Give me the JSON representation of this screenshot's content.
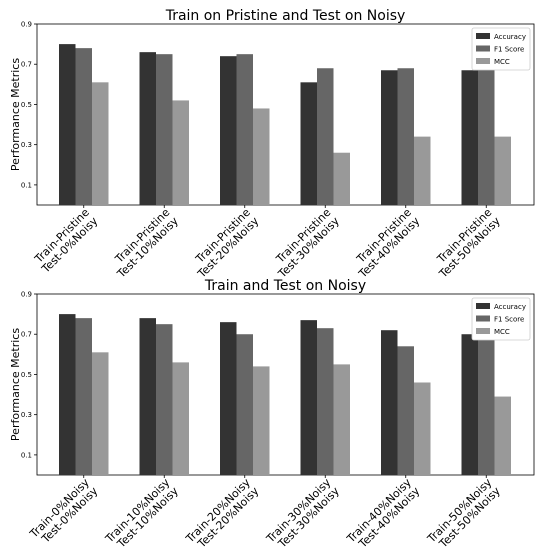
{
  "chart_data": [
    {
      "type": "bar",
      "title": "Train on Pristine and Test on Noisy",
      "xlabel": "",
      "ylabel": "Performance Metrics",
      "ylim": [
        0.0,
        0.9
      ],
      "yticks": [
        0.1,
        0.3,
        0.5,
        0.7,
        0.9
      ],
      "yticklabels": [
        "0.1",
        "0.3",
        "0.5",
        "0.7",
        "0.9"
      ],
      "categories": [
        [
          "Train-Pristine",
          "Test-0%Noisy"
        ],
        [
          "Train-Pristine",
          "Test-10%Noisy"
        ],
        [
          "Train-Pristine",
          "Test-20%Noisy"
        ],
        [
          "Train-Pristine",
          "Test-30%Noisy"
        ],
        [
          "Train-Pristine",
          "Test-40%Noisy"
        ],
        [
          "Train-Pristine",
          "Test-50%Noisy"
        ]
      ],
      "series": [
        {
          "name": "Accuracy",
          "color": "#333333",
          "values": [
            0.8,
            0.76,
            0.74,
            0.61,
            0.67,
            0.67
          ]
        },
        {
          "name": "F1 Score",
          "color": "#666666",
          "values": [
            0.78,
            0.75,
            0.75,
            0.68,
            0.68,
            0.68
          ]
        },
        {
          "name": "MCC",
          "color": "#999999",
          "values": [
            0.61,
            0.52,
            0.48,
            0.26,
            0.34,
            0.34
          ]
        }
      ],
      "legend": "top-right",
      "grid": false
    },
    {
      "type": "bar",
      "title": "Train and Test on Noisy",
      "xlabel": "",
      "ylabel": "Performance Metrics",
      "ylim": [
        0.0,
        0.9
      ],
      "yticks": [
        0.1,
        0.3,
        0.5,
        0.7,
        0.9
      ],
      "yticklabels": [
        "0.1",
        "0.3",
        "0.5",
        "0.7",
        "0.9"
      ],
      "categories": [
        [
          "Train-0%Noisy",
          "Test-0%Noisy"
        ],
        [
          "Train-10%Noisy",
          "Test-10%Noisy"
        ],
        [
          "Train-20%Noisy",
          "Test-20%Noisy"
        ],
        [
          "Train-30%Noisy",
          "Test-30%Noisy"
        ],
        [
          "Train-40%Noisy",
          "Test-40%Noisy"
        ],
        [
          "Train-50%Noisy",
          "Test-50%Noisy"
        ]
      ],
      "series": [
        {
          "name": "Accuracy",
          "color": "#333333",
          "values": [
            0.8,
            0.78,
            0.76,
            0.77,
            0.72,
            0.7
          ]
        },
        {
          "name": "F1 Score",
          "color": "#666666",
          "values": [
            0.78,
            0.75,
            0.7,
            0.73,
            0.64,
            0.68
          ]
        },
        {
          "name": "MCC",
          "color": "#999999",
          "values": [
            0.61,
            0.56,
            0.54,
            0.55,
            0.46,
            0.39
          ]
        }
      ],
      "legend": "top-right",
      "grid": false
    }
  ]
}
